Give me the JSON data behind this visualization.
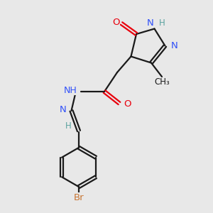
{
  "background_color": "#e8e8e8",
  "bond_color": "#1a1a1a",
  "colors": {
    "O": "#e8000d",
    "N": "#3050f8",
    "H": "#5ba3a0",
    "N_blue": "#3050f8",
    "Br": "#c87533",
    "C_black": "#1a1a1a"
  },
  "figsize": [
    3.0,
    3.0
  ],
  "dpi": 100
}
